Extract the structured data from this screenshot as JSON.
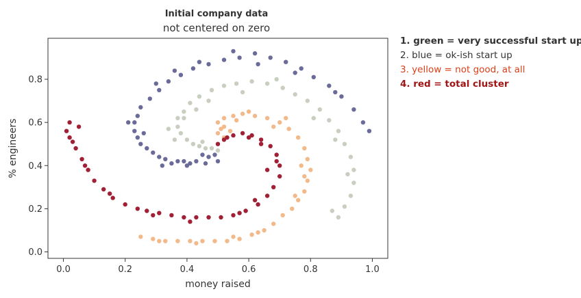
{
  "chart_data": {
    "type": "scatter",
    "title": "Initial company data",
    "subtitle": "not centered on zero",
    "xlabel": "money raised",
    "ylabel": "% engineers",
    "xlim": [
      -0.05,
      1.05
    ],
    "ylim": [
      -0.03,
      0.99
    ],
    "xticks": [
      0.0,
      0.2,
      0.4,
      0.6,
      0.8,
      1.0
    ],
    "xtick_labels": [
      "0.0",
      "0.2",
      "0.4",
      "0.6",
      "0.8",
      "1.0"
    ],
    "yticks": [
      0.0,
      0.2,
      0.4,
      0.6,
      0.8
    ],
    "ytick_labels": [
      "0.0",
      "0.2",
      "0.4",
      "0.6",
      "0.8"
    ],
    "grid": false,
    "series": [
      {
        "color": "#6b6b9a",
        "points": [
          [
            0.5,
            0.42
          ],
          [
            0.49,
            0.45
          ],
          [
            0.47,
            0.44
          ],
          [
            0.45,
            0.45
          ],
          [
            0.43,
            0.42
          ],
          [
            0.41,
            0.41
          ],
          [
            0.39,
            0.42
          ],
          [
            0.37,
            0.42
          ],
          [
            0.35,
            0.41
          ],
          [
            0.33,
            0.43
          ],
          [
            0.31,
            0.44
          ],
          [
            0.29,
            0.46
          ],
          [
            0.27,
            0.48
          ],
          [
            0.25,
            0.5
          ],
          [
            0.24,
            0.53
          ],
          [
            0.23,
            0.56
          ],
          [
            0.23,
            0.6
          ],
          [
            0.24,
            0.63
          ],
          [
            0.25,
            0.67
          ],
          [
            0.28,
            0.71
          ],
          [
            0.31,
            0.75
          ],
          [
            0.34,
            0.79
          ],
          [
            0.38,
            0.82
          ],
          [
            0.42,
            0.85
          ],
          [
            0.47,
            0.87
          ],
          [
            0.52,
            0.89
          ],
          [
            0.57,
            0.9
          ],
          [
            0.62,
            0.92
          ],
          [
            0.67,
            0.9
          ],
          [
            0.72,
            0.88
          ],
          [
            0.77,
            0.85
          ],
          [
            0.81,
            0.81
          ],
          [
            0.86,
            0.77
          ],
          [
            0.9,
            0.72
          ],
          [
            0.94,
            0.66
          ],
          [
            0.97,
            0.6
          ],
          [
            0.99,
            0.56
          ],
          [
            0.21,
            0.6
          ],
          [
            0.26,
            0.55
          ],
          [
            0.32,
            0.4
          ],
          [
            0.4,
            0.4
          ],
          [
            0.46,
            0.41
          ],
          [
            0.3,
            0.78
          ],
          [
            0.36,
            0.84
          ],
          [
            0.44,
            0.88
          ],
          [
            0.55,
            0.93
          ],
          [
            0.63,
            0.87
          ],
          [
            0.75,
            0.83
          ],
          [
            0.88,
            0.74
          ]
        ]
      },
      {
        "color": "#c9cfc0",
        "points": [
          [
            0.5,
            0.47
          ],
          [
            0.48,
            0.48
          ],
          [
            0.46,
            0.48
          ],
          [
            0.44,
            0.49
          ],
          [
            0.42,
            0.5
          ],
          [
            0.4,
            0.52
          ],
          [
            0.38,
            0.55
          ],
          [
            0.37,
            0.58
          ],
          [
            0.37,
            0.62
          ],
          [
            0.39,
            0.65
          ],
          [
            0.41,
            0.69
          ],
          [
            0.44,
            0.72
          ],
          [
            0.48,
            0.75
          ],
          [
            0.52,
            0.77
          ],
          [
            0.56,
            0.78
          ],
          [
            0.61,
            0.79
          ],
          [
            0.66,
            0.78
          ],
          [
            0.71,
            0.76
          ],
          [
            0.75,
            0.73
          ],
          [
            0.79,
            0.7
          ],
          [
            0.83,
            0.66
          ],
          [
            0.86,
            0.61
          ],
          [
            0.89,
            0.56
          ],
          [
            0.91,
            0.5
          ],
          [
            0.93,
            0.44
          ],
          [
            0.94,
            0.38
          ],
          [
            0.94,
            0.32
          ],
          [
            0.93,
            0.26
          ],
          [
            0.91,
            0.21
          ],
          [
            0.89,
            0.16
          ],
          [
            0.36,
            0.52
          ],
          [
            0.39,
            0.62
          ],
          [
            0.43,
            0.66
          ],
          [
            0.47,
            0.7
          ],
          [
            0.58,
            0.74
          ],
          [
            0.69,
            0.8
          ],
          [
            0.81,
            0.62
          ],
          [
            0.88,
            0.52
          ],
          [
            0.92,
            0.36
          ],
          [
            0.87,
            0.19
          ],
          [
            0.34,
            0.57
          ],
          [
            0.45,
            0.51
          ]
        ]
      },
      {
        "color": "#f2b98a",
        "points": [
          [
            0.5,
            0.55
          ],
          [
            0.52,
            0.53
          ],
          [
            0.54,
            0.56
          ],
          [
            0.52,
            0.58
          ],
          [
            0.5,
            0.6
          ],
          [
            0.52,
            0.62
          ],
          [
            0.55,
            0.63
          ],
          [
            0.58,
            0.64
          ],
          [
            0.62,
            0.63
          ],
          [
            0.66,
            0.62
          ],
          [
            0.7,
            0.6
          ],
          [
            0.73,
            0.57
          ],
          [
            0.76,
            0.53
          ],
          [
            0.78,
            0.48
          ],
          [
            0.79,
            0.43
          ],
          [
            0.8,
            0.38
          ],
          [
            0.79,
            0.33
          ],
          [
            0.78,
            0.28
          ],
          [
            0.76,
            0.24
          ],
          [
            0.74,
            0.2
          ],
          [
            0.71,
            0.17
          ],
          [
            0.68,
            0.13
          ],
          [
            0.65,
            0.1
          ],
          [
            0.61,
            0.08
          ],
          [
            0.57,
            0.06
          ],
          [
            0.53,
            0.05
          ],
          [
            0.49,
            0.05
          ],
          [
            0.45,
            0.05
          ],
          [
            0.41,
            0.05
          ],
          [
            0.37,
            0.05
          ],
          [
            0.33,
            0.05
          ],
          [
            0.29,
            0.06
          ],
          [
            0.25,
            0.07
          ],
          [
            0.51,
            0.57
          ],
          [
            0.56,
            0.61
          ],
          [
            0.68,
            0.58
          ],
          [
            0.77,
            0.4
          ],
          [
            0.75,
            0.26
          ],
          [
            0.63,
            0.09
          ],
          [
            0.55,
            0.07
          ],
          [
            0.43,
            0.04
          ],
          [
            0.31,
            0.05
          ],
          [
            0.78,
            0.35
          ],
          [
            0.72,
            0.62
          ],
          [
            0.6,
            0.65
          ]
        ]
      },
      {
        "color": "#a02035",
        "points": [
          [
            0.5,
            0.5
          ],
          [
            0.52,
            0.52
          ],
          [
            0.55,
            0.54
          ],
          [
            0.58,
            0.55
          ],
          [
            0.61,
            0.54
          ],
          [
            0.64,
            0.52
          ],
          [
            0.67,
            0.49
          ],
          [
            0.69,
            0.45
          ],
          [
            0.7,
            0.4
          ],
          [
            0.7,
            0.35
          ],
          [
            0.68,
            0.3
          ],
          [
            0.66,
            0.26
          ],
          [
            0.63,
            0.22
          ],
          [
            0.59,
            0.19
          ],
          [
            0.55,
            0.17
          ],
          [
            0.51,
            0.16
          ],
          [
            0.47,
            0.16
          ],
          [
            0.43,
            0.16
          ],
          [
            0.39,
            0.16
          ],
          [
            0.35,
            0.17
          ],
          [
            0.31,
            0.18
          ],
          [
            0.27,
            0.19
          ],
          [
            0.24,
            0.2
          ],
          [
            0.2,
            0.22
          ],
          [
            0.16,
            0.25
          ],
          [
            0.13,
            0.29
          ],
          [
            0.1,
            0.33
          ],
          [
            0.08,
            0.38
          ],
          [
            0.06,
            0.43
          ],
          [
            0.04,
            0.48
          ],
          [
            0.02,
            0.53
          ],
          [
            0.01,
            0.56
          ],
          [
            0.05,
            0.58
          ],
          [
            0.02,
            0.6
          ],
          [
            0.64,
            0.5
          ],
          [
            0.6,
            0.53
          ],
          [
            0.53,
            0.53
          ],
          [
            0.69,
            0.42
          ],
          [
            0.66,
            0.38
          ],
          [
            0.62,
            0.24
          ],
          [
            0.57,
            0.18
          ],
          [
            0.41,
            0.14
          ],
          [
            0.29,
            0.17
          ],
          [
            0.15,
            0.27
          ],
          [
            0.07,
            0.4
          ],
          [
            0.03,
            0.51
          ]
        ]
      }
    ]
  },
  "legend": {
    "items": [
      {
        "text": "1. green = very successful start up",
        "color": "#333333",
        "weight": "bold"
      },
      {
        "text": "2. blue = ok-ish start up",
        "color": "#333333",
        "weight": "normal"
      },
      {
        "text": "3. yellow = not good, at all",
        "color": "#d9401a",
        "weight": "normal"
      },
      {
        "text": "4. red = total cluster",
        "color": "#a01515",
        "weight": "bold"
      }
    ]
  }
}
